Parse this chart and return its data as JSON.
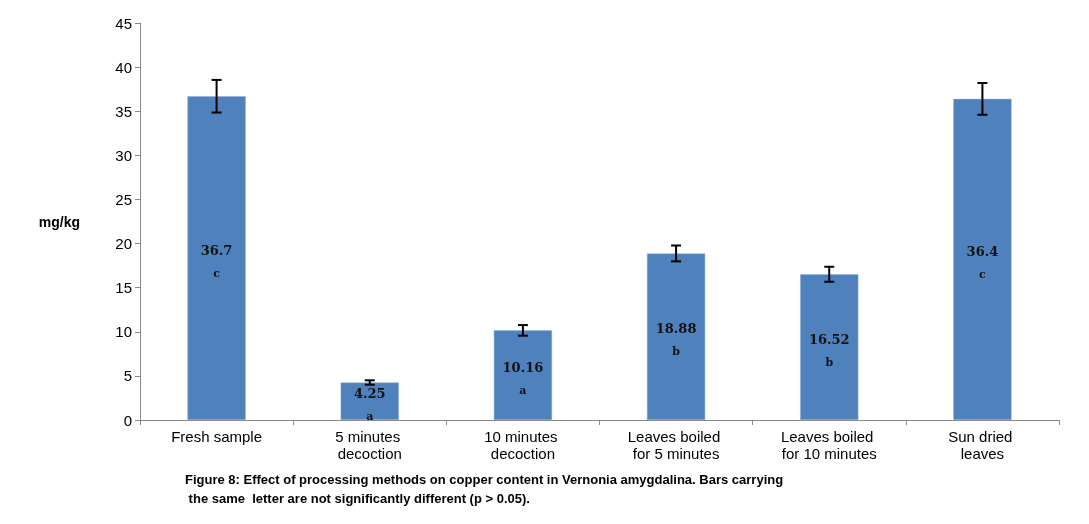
{
  "chart_data": {
    "type": "bar",
    "ylabel": "mg/kg",
    "categories": [
      "Fresh sample",
      "5 minutes decoction",
      "10 minutes decoction",
      "Leaves boiled for 5 minutes",
      "Leaves boiled for 10 minutes",
      "Sun dried leaves"
    ],
    "values": [
      36.7,
      4.25,
      10.16,
      18.88,
      16.52,
      36.4
    ],
    "errors": [
      1.85,
      0.25,
      0.6,
      0.9,
      0.85,
      1.8
    ],
    "color": "#4f81bd",
    "data_labels": true,
    "ylim": [
      0,
      45
    ],
    "yticks": [
      0,
      5,
      10,
      15,
      20,
      25,
      30,
      35,
      40,
      45
    ],
    "grid": false,
    "annotations": [
      "c",
      "a",
      "a",
      "b",
      "b",
      "c",
      "Figure 8: Effect of processing methods on copper content in Vernonia amygdalina. Bars carrying the same  letter are not significantly different (p > 0.05)."
    ]
  }
}
